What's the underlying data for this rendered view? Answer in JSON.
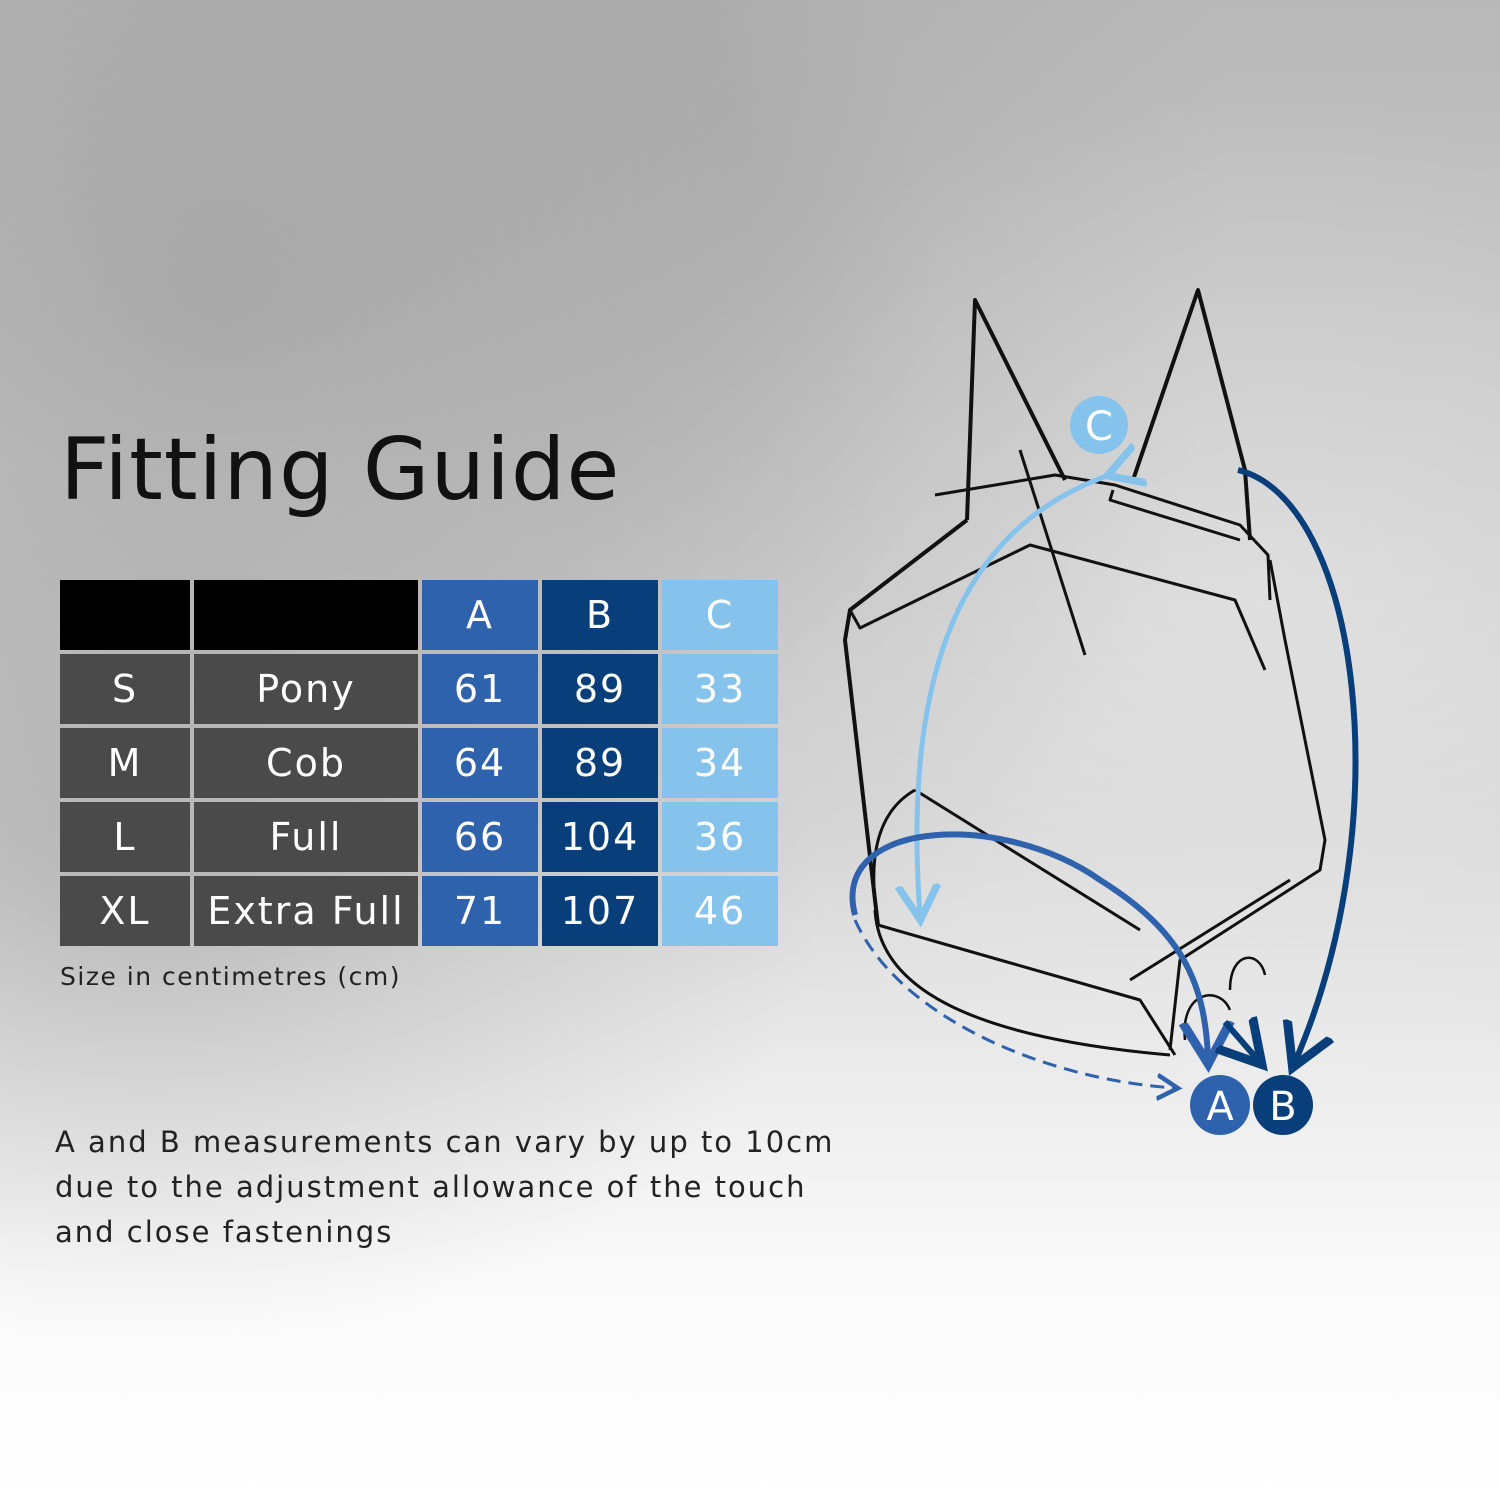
{
  "title": "Fitting Guide",
  "table": {
    "headers": [
      "",
      "",
      "A",
      "B",
      "C"
    ],
    "rows": [
      {
        "size": "S",
        "type": "Pony",
        "a": "61",
        "b": "89",
        "c": "33"
      },
      {
        "size": "M",
        "type": "Cob",
        "a": "64",
        "b": "89",
        "c": "34"
      },
      {
        "size": "L",
        "type": "Full",
        "a": "66",
        "b": "104",
        "c": "36"
      },
      {
        "size": "XL",
        "type": "Extra Full",
        "a": "71",
        "b": "107",
        "c": "46"
      }
    ]
  },
  "units_note": "Size in centimetres (cm)",
  "measurement_note": "A and B measurements can vary by up to 10cm due to the adjustment allowance of the touch and close fastenings",
  "diagram": {
    "label_a": "A",
    "label_b": "B",
    "label_c": "C"
  },
  "colors": {
    "a": "#2f62ad",
    "b": "#083f7a",
    "c": "#86c3ec",
    "row_bg": "#4a4a4a",
    "header_bg": "#000000"
  }
}
